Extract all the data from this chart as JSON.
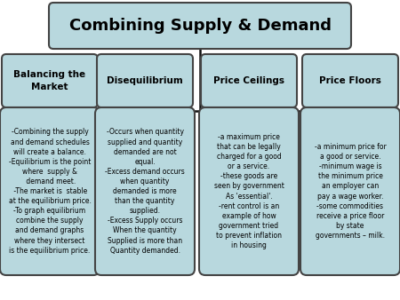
{
  "title": "Combining Supply & Demand",
  "title_fontsize": 13,
  "box_color": "#b8d8de",
  "box_edge_color": "#444444",
  "bg_color": "#ffffff",
  "line_color": "#111111",
  "categories": [
    "Balancing the\nMarket",
    "Disequilibrium",
    "Price Ceilings",
    "Price Floors"
  ],
  "details": [
    "-Combining the supply\nand demand schedules\nwill create a balance.\n-Equilibrium is the point\nwhere  supply &\n demand meet.\n -The market is  stable\nat the equilibrium price.\n-To graph equilibrium\ncombine the supply\nand demand graphs\nwhere they intersect\nis the equilibrium price.",
    "-Occurs when quantity\nsupplied and quantity\ndemanded are not\nequal.\n-Excess demand occurs\nwhen quantity\ndemanded is more\nthan the quantity\nsupplied.\n-Excess Supply occurs\nWhen the quantity\nSupplied is more than\nQuantity demanded.",
    "-a maximum price\nthat can be legally\ncharged for a good\nor a service.\n-these goods are\nseen by government\nAs 'essential'.\n-rent control is an\nexample of how\ngovernment tried\nto prevent inflation\nin housing",
    "-a minimum price for\na good or service.\n-minimum wage is\nthe minimum price\nan employer can\npay a wage worker.\n-some commodities\nreceive a price floor\nby state\ngovernments – milk."
  ],
  "cat_fontsize": 7.5,
  "text_fontsize": 5.5
}
